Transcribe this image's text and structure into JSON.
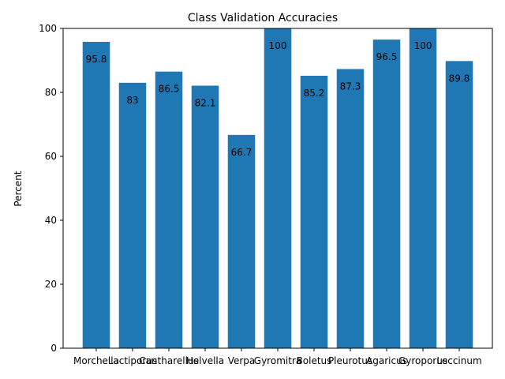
{
  "chart_data": {
    "type": "bar",
    "title": "Class Validation Accuracies",
    "xlabel": "",
    "ylabel": "Percent",
    "ylim": [
      0,
      100
    ],
    "yticks": [
      0,
      20,
      40,
      60,
      80,
      100
    ],
    "grid": false,
    "legend": "none",
    "bar_color": "#1f77b4",
    "categories": [
      "Morchella",
      "Lactiporus",
      "Cantharellus",
      "Helvella",
      "Verpa",
      "Gyromitra",
      "Boletus",
      "Pleurotus",
      "Agaricus",
      "Gyroporus",
      "Leccinum"
    ],
    "values": [
      95.8,
      83,
      86.5,
      82.1,
      66.7,
      100,
      85.2,
      87.3,
      96.5,
      100,
      89.8
    ],
    "data_labels": [
      "95.8",
      "83",
      "86.5",
      "82.1",
      "66.7",
      "100",
      "85.2",
      "87.3",
      "96.5",
      "100",
      "89.8"
    ]
  }
}
